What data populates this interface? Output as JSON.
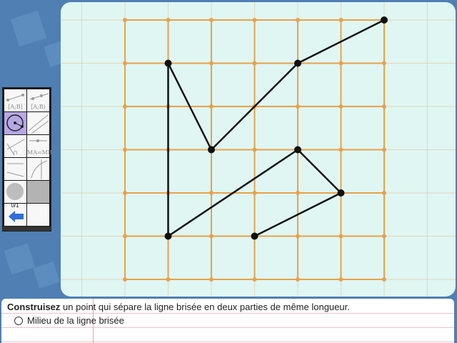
{
  "instructions": {
    "task_verb": "Construisez",
    "task_rest": " un point qui sépare la ligne brisée en deux parties de même longueur.",
    "option_label": "Milieu de la ligne brisée"
  },
  "toolbox": {
    "counter": "0/1",
    "tool_labels": {
      "segment": "[A;B]",
      "ray": "[A;B)",
      "midpoint": "MA=MB",
      "arc": "∩"
    },
    "icons": [
      "segment-icon",
      "ray-icon",
      "compass-icon",
      "line-icon",
      "arc-icon",
      "midpoint-icon",
      "perpendicular-icon",
      "ruler-icon",
      "point-icon",
      "fill-icon",
      "back-arrow-icon"
    ]
  },
  "figure": {
    "grid_color": "#e8a14a",
    "line_color": "#111111",
    "polyline": [
      [
        6,
        0
      ],
      [
        4,
        1
      ],
      [
        2,
        3
      ],
      [
        1,
        1
      ],
      [
        1,
        5
      ],
      [
        4,
        3
      ],
      [
        5,
        4
      ],
      [
        3,
        5
      ]
    ]
  }
}
